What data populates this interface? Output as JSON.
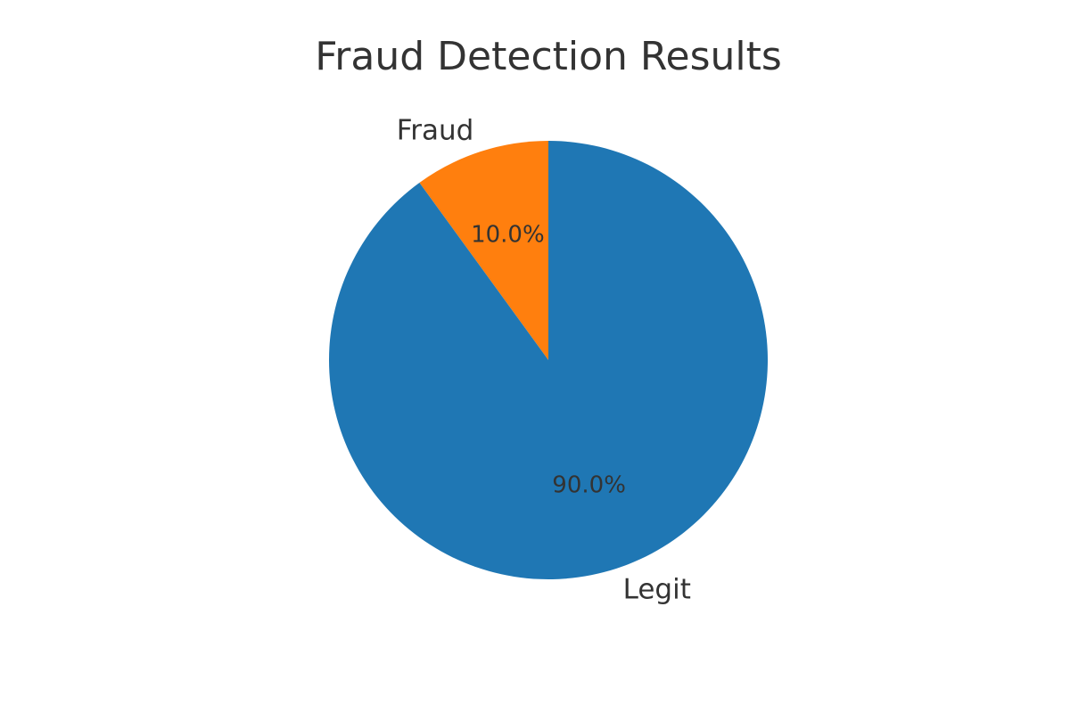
{
  "chart_data": {
    "type": "pie",
    "title": "Fraud Detection Results",
    "slices": [
      {
        "label": "Fraud",
        "value": 10.0,
        "pct_label": "10.0%",
        "color": "#ff7f0e"
      },
      {
        "label": "Legit",
        "value": 90.0,
        "pct_label": "90.0%",
        "color": "#1f77b4"
      }
    ],
    "start_angle_deg": 90,
    "direction": "counterclockwise"
  }
}
